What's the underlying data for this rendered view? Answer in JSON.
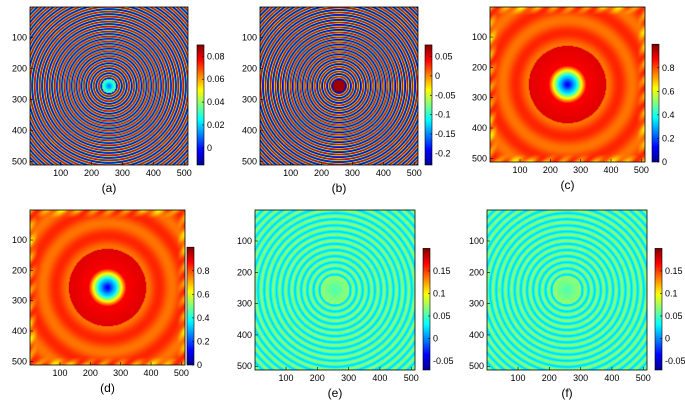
{
  "chart_data": [
    {
      "type": "heatmap",
      "caption": "(a)",
      "pattern": "rings",
      "xlim": [
        1,
        512
      ],
      "ylim": [
        1,
        512
      ],
      "xticks": [
        100,
        200,
        300,
        400,
        500
      ],
      "yticks": [
        100,
        200,
        300,
        400,
        500
      ],
      "ring_count": 16,
      "colorbar": {
        "min": -0.015,
        "max": 0.09,
        "ticks": [
          0,
          0.02,
          0.04,
          0.06,
          0.08
        ],
        "tick_labels": [
          "0",
          "0.02",
          "0.04",
          "0.06",
          "0.08"
        ]
      }
    },
    {
      "type": "heatmap",
      "caption": "(b)",
      "pattern": "rings-inverted",
      "xlim": [
        1,
        512
      ],
      "ylim": [
        1,
        512
      ],
      "xticks": [
        100,
        200,
        300,
        400,
        500
      ],
      "yticks": [
        100,
        200,
        300,
        400,
        500
      ],
      "ring_count": 16,
      "colorbar": {
        "min": -0.23,
        "max": 0.08,
        "ticks": [
          -0.2,
          -0.15,
          -0.1,
          -0.05,
          0,
          0.05
        ],
        "tick_labels": [
          "-0.2",
          "-0.15",
          "-0.1",
          "-0.05",
          "0",
          "0.05"
        ]
      }
    },
    {
      "type": "heatmap",
      "caption": "(c)",
      "pattern": "well",
      "xlim": [
        1,
        512
      ],
      "ylim": [
        1,
        512
      ],
      "xticks": [
        100,
        200,
        300,
        400,
        500
      ],
      "yticks": [
        100,
        200,
        300,
        400,
        500
      ],
      "colorbar": {
        "min": 0,
        "max": 1,
        "ticks": [
          0,
          0.2,
          0.4,
          0.6,
          0.8
        ],
        "tick_labels": [
          "0",
          "0.2",
          "0.4",
          "0.6",
          "0.8"
        ]
      }
    },
    {
      "type": "heatmap",
      "caption": "(d)",
      "pattern": "well",
      "xlim": [
        1,
        512
      ],
      "ylim": [
        1,
        512
      ],
      "xticks": [
        100,
        200,
        300,
        400,
        500
      ],
      "yticks": [
        100,
        200,
        300,
        400,
        500
      ],
      "colorbar": {
        "min": 0,
        "max": 1,
        "ticks": [
          0,
          0.2,
          0.4,
          0.6,
          0.8
        ],
        "tick_labels": [
          "0",
          "0.2",
          "0.4",
          "0.6",
          "0.8"
        ]
      }
    },
    {
      "type": "heatmap",
      "caption": "(e)",
      "pattern": "rings-faint",
      "xlim": [
        1,
        512
      ],
      "ylim": [
        1,
        512
      ],
      "xticks": [
        100,
        200,
        300,
        400,
        500
      ],
      "yticks": [
        100,
        200,
        300,
        400,
        500
      ],
      "ring_count": 13,
      "colorbar": {
        "min": -0.07,
        "max": 0.2,
        "ticks": [
          -0.05,
          0,
          0.05,
          0.1,
          0.15
        ],
        "tick_labels": [
          "-0.05",
          "0",
          "0.05",
          "0.1",
          "0.15"
        ]
      }
    },
    {
      "type": "heatmap",
      "caption": "(f)",
      "pattern": "rings-faint",
      "xlim": [
        1,
        512
      ],
      "ylim": [
        1,
        512
      ],
      "xticks": [
        100,
        200,
        300,
        400,
        500
      ],
      "yticks": [
        100,
        200,
        300,
        400,
        500
      ],
      "ring_count": 13,
      "colorbar": {
        "min": -0.07,
        "max": 0.2,
        "ticks": [
          -0.05,
          0,
          0.05,
          0.1,
          0.15
        ],
        "tick_labels": [
          "-0.05",
          "0",
          "0.05",
          "0.1",
          "0.15"
        ]
      }
    }
  ]
}
